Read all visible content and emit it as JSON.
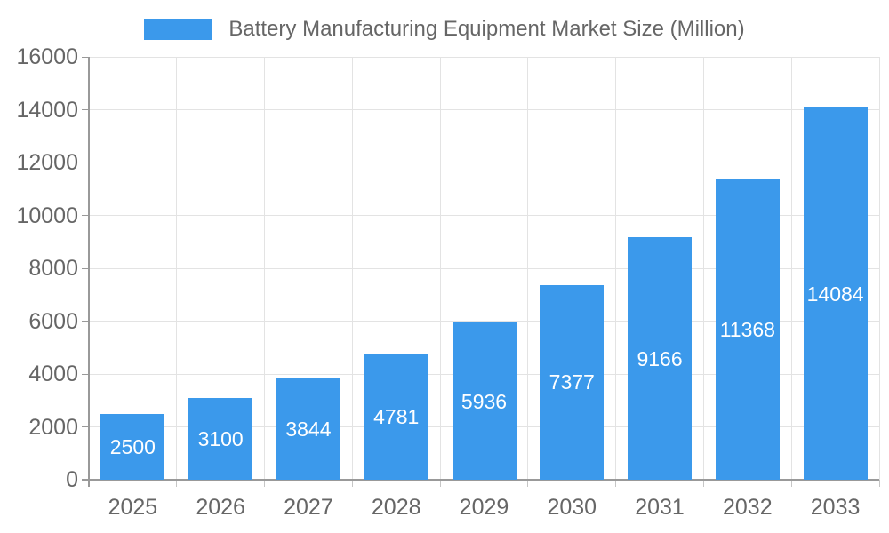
{
  "chart_data": {
    "type": "bar",
    "title": "Battery Manufacturing Equipment Market Size (Million)",
    "categories": [
      "2025",
      "2026",
      "2027",
      "2028",
      "2029",
      "2030",
      "2031",
      "2032",
      "2033"
    ],
    "values": [
      2500,
      3100,
      3844,
      4781,
      5936,
      7377,
      9166,
      11368,
      14084
    ],
    "xlabel": "",
    "ylabel": "",
    "ylim": [
      0,
      16000
    ],
    "ytick_step": 2000,
    "ytick_labels": [
      "0",
      "2000",
      "4000",
      "6000",
      "8000",
      "10000",
      "12000",
      "14000",
      "16000"
    ],
    "legend_position": "top",
    "grid": "horizontal and vertical gridlines on",
    "value_labels": "white, centered inside bars",
    "colors": {
      "bar": "#3B99EB",
      "axis": "#999999",
      "grid": "#E3E3E3",
      "boundary_tick": "#C6C6C6",
      "tick_text": "#666666",
      "value_text": "#FFFFFF",
      "background": "#FFFFFF"
    }
  }
}
